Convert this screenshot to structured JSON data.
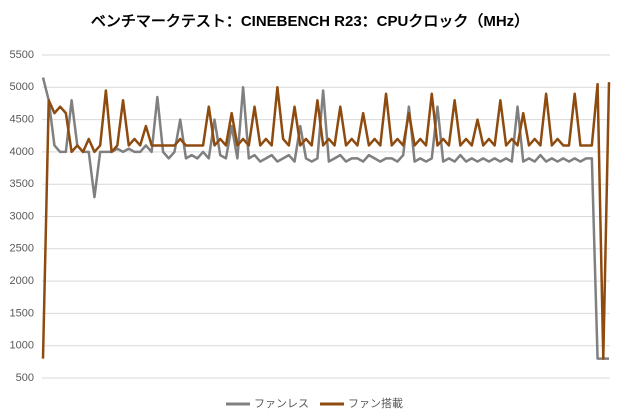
{
  "chart_data": {
    "type": "line",
    "title": "ベンチマークテスト：CINEBENCH R23：CPUクロック（MHz）",
    "ylim": [
      500,
      5500
    ],
    "yticks": [
      500,
      1000,
      1500,
      2000,
      2500,
      3000,
      3500,
      4000,
      4500,
      5000,
      5500
    ],
    "grid": true,
    "legend": "bottom",
    "series": [
      {
        "name": "ファンレス",
        "color": "#808080",
        "values": [
          5150,
          4800,
          4100,
          4000,
          4000,
          4800,
          4100,
          4000,
          4000,
          3300,
          4000,
          4000,
          4000,
          4050,
          4000,
          4050,
          4000,
          4000,
          4100,
          4000,
          4850,
          4000,
          3900,
          4000,
          4500,
          3900,
          3950,
          3900,
          4000,
          3900,
          4500,
          3950,
          3900,
          4400,
          3900,
          5000,
          3900,
          3950,
          3850,
          3900,
          3950,
          3850,
          3900,
          3950,
          3850,
          4400,
          3900,
          3850,
          3900,
          4950,
          3850,
          3900,
          3950,
          3850,
          3900,
          3900,
          3850,
          3950,
          3900,
          3850,
          3900,
          3900,
          3850,
          3950,
          4700,
          3850,
          3900,
          3850,
          3900,
          4700,
          3850,
          3900,
          3850,
          3950,
          3850,
          3900,
          3850,
          3900,
          3850,
          3900,
          3850,
          3900,
          3850,
          4700,
          3850,
          3900,
          3850,
          3950,
          3850,
          3900,
          3850,
          3900,
          3850,
          3900,
          3850,
          3900,
          3900,
          800,
          800,
          800
        ]
      },
      {
        "name": "ファン搭載",
        "color": "#8e4b10",
        "values": [
          800,
          4800,
          4600,
          4700,
          4600,
          4000,
          4100,
          4000,
          4200,
          4000,
          4100,
          4950,
          4000,
          4100,
          4800,
          4100,
          4200,
          4100,
          4400,
          4100,
          4100,
          4100,
          4100,
          4100,
          4200,
          4100,
          4100,
          4100,
          4100,
          4700,
          4100,
          4200,
          4100,
          4600,
          4100,
          4200,
          4100,
          4700,
          4100,
          4200,
          4100,
          5000,
          4200,
          4100,
          4700,
          4100,
          4200,
          4100,
          4800,
          4100,
          4200,
          4100,
          4700,
          4100,
          4200,
          4100,
          4600,
          4100,
          4200,
          4100,
          4900,
          4100,
          4200,
          4100,
          4600,
          4100,
          4200,
          4100,
          4900,
          4100,
          4200,
          4100,
          4800,
          4100,
          4200,
          4100,
          4500,
          4100,
          4200,
          4100,
          4800,
          4100,
          4200,
          4100,
          4600,
          4100,
          4200,
          4100,
          4900,
          4100,
          4200,
          4100,
          4100,
          4900,
          4100,
          4100,
          4100,
          5050,
          800,
          5080
        ]
      }
    ]
  }
}
